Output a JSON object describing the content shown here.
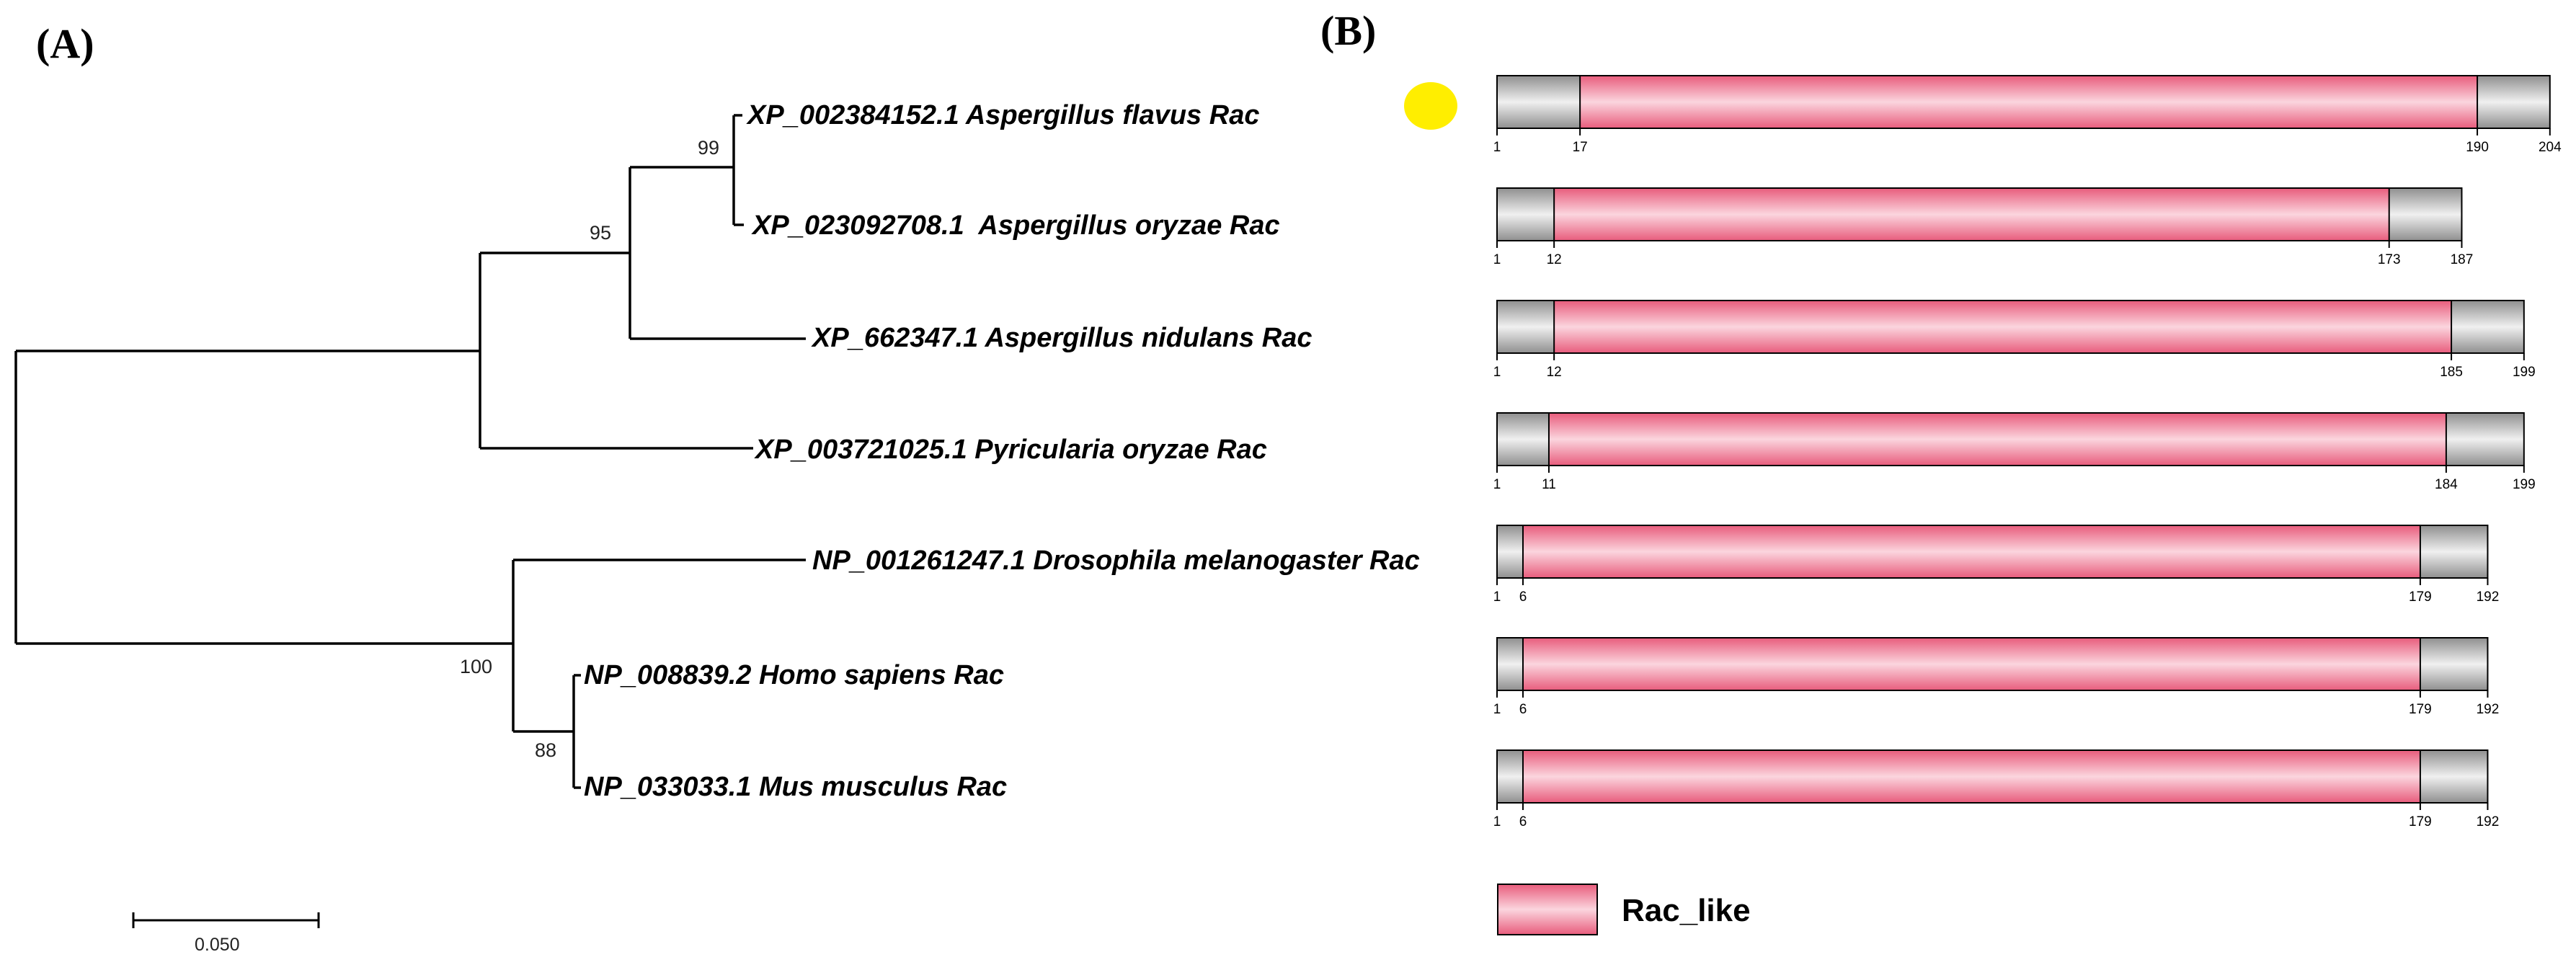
{
  "panel_a": {
    "label": "(A)",
    "taxa": [
      "XP_002384152.1 Aspergillus flavus Rac",
      "XP_023092708.1  Aspergillus oryzae Rac",
      "XP_662347.1 Aspergillus nidulans Rac",
      "XP_003721025.1 Pyricularia oryzae Rac",
      "NP_001261247.1 Drosophila melanogaster Rac",
      "NP_008839.2 Homo sapiens Rac",
      "NP_033033.1 Mus musculus Rac"
    ],
    "bootstrap": [
      "99",
      "95",
      "100",
      "88"
    ],
    "scale_label": "0.050"
  },
  "panel_b": {
    "label": "(B)",
    "colors": {
      "domain": "#e85c7c",
      "domain_highlight": "#fbd5de",
      "flank": "#8f8f8f",
      "flank_highlight": "#f0f0f0",
      "marker": "#ffee00"
    },
    "proteins": [
      {
        "length": 204,
        "domain": [
          17,
          190
        ],
        "marker": true
      },
      {
        "length": 187,
        "domain": [
          12,
          173
        ]
      },
      {
        "length": 199,
        "domain": [
          12,
          185
        ]
      },
      {
        "length": 199,
        "domain": [
          11,
          184
        ]
      },
      {
        "length": 192,
        "domain": [
          6,
          179
        ]
      },
      {
        "length": 192,
        "domain": [
          6,
          179
        ]
      },
      {
        "length": 192,
        "domain": [
          6,
          179
        ]
      }
    ],
    "legend": {
      "label": "Rac_like"
    }
  }
}
